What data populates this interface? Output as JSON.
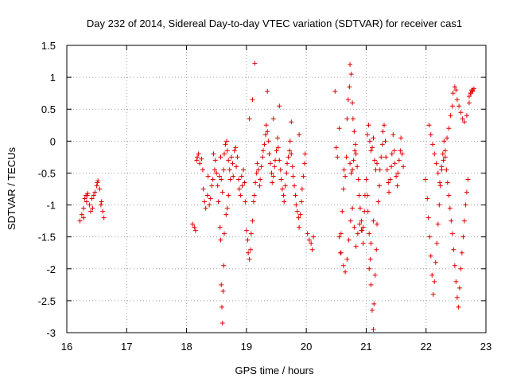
{
  "chart_data": {
    "type": "scatter",
    "title": "Day 232 of 2014, Sidereal Day-to-day VTEC variation (SDTVAR) for receiver cas1",
    "xlabel": "GPS time / hours",
    "ylabel": "SDTVAR / TECUs",
    "xlim": [
      16,
      23
    ],
    "ylim": [
      -3,
      1.5
    ],
    "xticks": [
      16,
      17,
      18,
      19,
      20,
      21,
      22,
      23
    ],
    "yticks": [
      -3,
      -2.5,
      -2,
      -1.5,
      -1,
      -0.5,
      0,
      0.5,
      1,
      1.5
    ],
    "xtick_labels": [
      "16",
      "17",
      "18",
      "19",
      "20",
      "21",
      "22",
      "23"
    ],
    "ytick_labels": [
      "-3",
      "-2.5",
      "-2",
      "-1.5",
      "-1",
      "-0.5",
      "0",
      "0.5",
      "1",
      "1.5"
    ],
    "grid": true,
    "marker": "+",
    "marker_color": "#e00000",
    "series": [
      {
        "name": "cas1",
        "x": [
          16.22,
          16.25,
          16.28,
          16.3,
          16.32,
          16.33,
          16.35,
          16.38,
          16.4,
          16.42,
          16.45,
          16.47,
          16.5,
          16.52,
          16.55,
          16.57,
          16.6,
          16.62,
          16.28,
          16.34,
          16.43,
          16.51,
          16.58,
          18.1,
          18.13,
          18.15,
          18.17,
          18.18,
          18.2,
          18.22,
          18.25,
          18.27,
          18.28,
          18.3,
          18.32,
          18.35,
          18.36,
          18.38,
          18.4,
          18.42,
          18.44,
          18.45,
          18.47,
          18.48,
          18.5,
          18.52,
          18.53,
          18.55,
          18.57,
          18.58,
          18.6,
          18.62,
          18.63,
          18.65,
          18.67,
          18.68,
          18.7,
          18.72,
          18.73,
          18.75,
          18.77,
          18.78,
          18.8,
          18.82,
          18.83,
          18.85,
          18.87,
          18.88,
          18.9,
          18.92,
          18.93,
          18.95,
          18.97,
          18.98,
          18.56,
          18.57,
          18.58,
          18.59,
          18.6,
          18.61,
          18.62,
          18.63,
          18.66,
          18.68,
          18.7,
          19.0,
          19.02,
          19.03,
          19.05,
          19.07,
          19.08,
          19.1,
          19.12,
          19.13,
          19.15,
          19.17,
          19.18,
          19.2,
          19.22,
          19.23,
          19.25,
          19.27,
          19.28,
          19.3,
          19.32,
          19.33,
          19.35,
          19.37,
          19.38,
          19.4,
          19.42,
          19.43,
          19.45,
          19.47,
          19.48,
          19.5,
          19.52,
          19.53,
          19.55,
          19.57,
          19.58,
          19.6,
          19.62,
          19.63,
          19.65,
          19.67,
          19.68,
          19.7,
          19.72,
          19.73,
          19.75,
          19.77,
          19.78,
          19.8,
          19.82,
          19.83,
          19.85,
          19.87,
          19.88,
          19.9,
          19.92,
          19.93,
          19.95,
          19.97,
          19.98,
          19.05,
          19.1,
          19.14,
          19.35,
          19.45,
          19.55,
          19.75,
          19.88,
          20.02,
          20.05,
          20.08,
          20.1,
          20.12,
          20.48,
          20.5,
          20.52,
          20.55,
          20.57,
          20.58,
          20.6,
          20.62,
          20.63,
          20.65,
          20.67,
          20.68,
          20.7,
          20.72,
          20.73,
          20.75,
          20.77,
          20.78,
          20.8,
          20.82,
          20.83,
          20.85,
          20.87,
          20.88,
          20.9,
          20.92,
          20.93,
          20.95,
          20.97,
          20.98,
          20.55,
          20.58,
          20.62,
          20.65,
          20.68,
          20.71,
          20.74,
          20.77,
          20.8,
          20.83,
          20.86,
          20.89,
          20.92,
          20.95,
          20.73,
          20.75,
          20.77,
          20.79,
          20.81,
          21.0,
          21.02,
          21.03,
          21.05,
          21.07,
          21.08,
          21.1,
          21.12,
          21.13,
          21.15,
          21.17,
          21.18,
          21.2,
          21.22,
          21.23,
          21.25,
          21.27,
          21.28,
          21.3,
          21.32,
          21.33,
          21.35,
          21.37,
          21.38,
          21.4,
          21.42,
          21.43,
          21.45,
          21.47,
          21.48,
          21.5,
          21.52,
          21.53,
          21.55,
          21.57,
          21.58,
          21.6,
          21.62,
          21.02,
          21.04,
          21.06,
          21.08,
          21.1,
          21.12,
          21.14,
          21.16,
          21.18,
          21.05,
          21.08,
          21.12,
          21.99,
          22.02,
          22.04,
          22.06,
          22.08,
          22.1,
          22.12,
          22.14,
          22.16,
          22.18,
          22.2,
          22.22,
          22.24,
          22.26,
          22.28,
          22.3,
          22.32,
          22.34,
          22.36,
          22.38,
          22.4,
          22.42,
          22.44,
          22.46,
          22.48,
          22.5,
          22.52,
          22.54,
          22.56,
          22.58,
          22.6,
          22.62,
          22.64,
          22.66,
          22.68,
          22.7,
          22.72,
          22.74,
          22.76,
          22.78,
          22.8,
          22.05,
          22.08,
          22.11,
          22.14,
          22.17,
          22.2,
          22.23,
          22.26,
          22.29,
          22.32,
          22.35,
          22.38,
          22.41,
          22.44,
          22.45,
          22.48,
          22.5,
          22.52,
          22.55,
          22.58,
          22.61,
          22.64,
          22.68,
          22.72,
          22.75,
          22.78
        ],
        "y": [
          -1.25,
          -1.15,
          -1.05,
          -0.9,
          -0.85,
          -0.95,
          -0.82,
          -1.0,
          -1.1,
          -0.9,
          -0.85,
          -0.8,
          -0.7,
          -0.62,
          -0.75,
          -1.0,
          -1.1,
          -1.2,
          -1.2,
          -0.85,
          -1.05,
          -0.65,
          -0.95,
          -1.3,
          -1.35,
          -1.4,
          -0.3,
          -0.25,
          -0.2,
          -0.35,
          -0.28,
          -0.45,
          -0.75,
          -0.95,
          -1.05,
          -0.85,
          -0.55,
          -1.0,
          -0.9,
          -0.7,
          -0.6,
          -0.2,
          -0.45,
          -0.3,
          -0.5,
          -0.7,
          -0.95,
          -0.55,
          -0.25,
          -0.6,
          -0.8,
          -0.45,
          -0.2,
          -0.05,
          0.0,
          -0.15,
          -0.3,
          -0.45,
          -0.6,
          -0.25,
          -0.35,
          -0.55,
          -0.15,
          -0.1,
          -0.4,
          -0.25,
          -0.6,
          -0.75,
          -0.85,
          -0.55,
          -0.7,
          -0.45,
          -0.65,
          -0.95,
          -1.35,
          -1.55,
          -2.25,
          -2.6,
          -2.85,
          -2.35,
          -1.95,
          -1.45,
          -1.15,
          -1.05,
          -0.85,
          -1.4,
          -1.55,
          -1.75,
          -1.85,
          -1.7,
          -1.45,
          -1.25,
          -0.95,
          -0.85,
          -0.65,
          -0.5,
          -0.35,
          -0.45,
          -0.7,
          -0.6,
          -0.4,
          -0.25,
          -0.15,
          -0.05,
          0.1,
          0.25,
          0.15,
          0.0,
          -0.2,
          -0.35,
          -0.5,
          -0.65,
          -0.55,
          -0.4,
          -0.3,
          -0.15,
          0.05,
          -0.1,
          -0.3,
          -0.45,
          -0.6,
          -0.75,
          -0.85,
          -0.95,
          -0.7,
          -0.5,
          -0.35,
          -0.25,
          -0.15,
          0.0,
          -0.2,
          -0.4,
          -0.55,
          -0.7,
          -0.85,
          -1.0,
          -1.1,
          -1.2,
          -1.35,
          -1.15,
          -0.95,
          -0.75,
          -0.55,
          -0.35,
          -0.2,
          0.35,
          0.65,
          1.22,
          0.78,
          0.35,
          0.55,
          0.3,
          0.1,
          -1.45,
          -1.55,
          -1.6,
          -1.7,
          -1.5,
          0.78,
          -0.1,
          -0.25,
          0.2,
          -1.75,
          -1.45,
          -1.1,
          -0.75,
          -0.45,
          -0.55,
          -0.25,
          0.35,
          0.65,
          0.85,
          1.2,
          1.05,
          0.6,
          0.35,
          0.15,
          -0.05,
          -0.2,
          -0.4,
          -0.6,
          -0.85,
          -1.05,
          -1.25,
          -1.4,
          -1.35,
          -1.1,
          -0.85,
          -1.5,
          -1.75,
          -1.95,
          -2.05,
          -1.85,
          -1.55,
          -1.25,
          -1.05,
          -1.35,
          -1.65,
          -1.45,
          -1.3,
          -1.4,
          -1.6,
          -0.35,
          -0.5,
          -0.45,
          -0.3,
          -0.15,
          -0.6,
          -0.85,
          -1.1,
          -1.45,
          -1.85,
          -2.25,
          -2.65,
          -2.95,
          -2.55,
          -2.1,
          -1.7,
          -1.3,
          -0.95,
          -0.7,
          -0.45,
          -0.25,
          -0.05,
          0.15,
          0.25,
          0.0,
          -0.25,
          -0.45,
          -0.65,
          -0.8,
          -0.6,
          -0.4,
          -0.2,
          0.1,
          -0.15,
          -0.35,
          -0.55,
          -0.7,
          -0.5,
          -0.3,
          -0.15,
          0.05,
          -0.2,
          -0.4,
          0.1,
          0.25,
          0.0,
          -0.15,
          -0.1,
          0.05,
          -0.3,
          -0.45,
          -0.35,
          -2.0,
          -1.6,
          -1.25,
          -0.6,
          -0.9,
          -1.2,
          -1.5,
          -1.8,
          -2.1,
          -2.4,
          -2.2,
          -1.9,
          -1.6,
          -1.3,
          -1.0,
          -0.7,
          -0.4,
          -0.2,
          0.0,
          -0.25,
          -0.45,
          -0.65,
          -0.85,
          -1.05,
          -1.25,
          -1.45,
          -1.7,
          -1.95,
          -2.2,
          -2.45,
          -2.6,
          -2.3,
          -2.0,
          -1.75,
          -1.5,
          -1.25,
          -1.0,
          -0.8,
          -0.6,
          0.7,
          0.75,
          0.8,
          0.78,
          0.82,
          0.25,
          0.1,
          -0.05,
          -0.2,
          -0.35,
          -0.5,
          -0.65,
          -0.45,
          -0.3,
          -0.15,
          0.05,
          0.2,
          0.4,
          0.55,
          0.75,
          0.85,
          0.8,
          0.65,
          0.55,
          0.45,
          0.35,
          0.3,
          0.4,
          0.6,
          0.75,
          0.8
        ]
      }
    ]
  }
}
